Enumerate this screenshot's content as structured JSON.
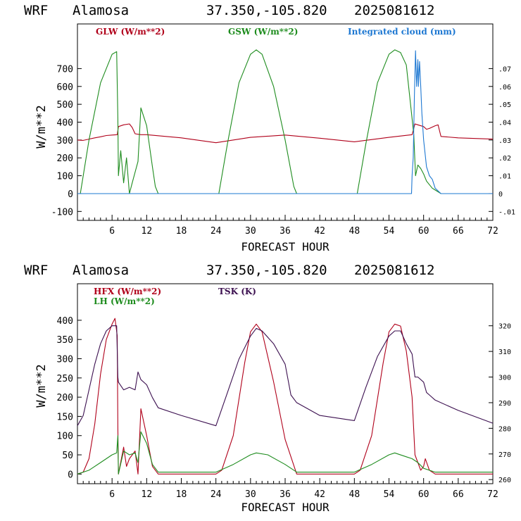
{
  "colors": {
    "red": "#b0001a",
    "green": "#1e8c1e",
    "blue": "#1e78d2",
    "purple": "#3c1050"
  },
  "chart_data": [
    {
      "type": "line",
      "header": {
        "model": "WRF",
        "site": "Alamosa",
        "coords": "37.350,-105.820",
        "run": "2025081612"
      },
      "xlabel": "FORECAST HOUR",
      "ylabel": "W/m**2",
      "xlim": [
        0,
        72
      ],
      "ylim": [
        -150,
        950
      ],
      "x_ticks": [
        6,
        12,
        18,
        24,
        30,
        36,
        42,
        48,
        54,
        60,
        66,
        72
      ],
      "y_ticks": [
        -100,
        0,
        100,
        200,
        300,
        400,
        500,
        600,
        700
      ],
      "y2_lim": [
        -0.015,
        0.095
      ],
      "y2_ticks": [
        -0.01,
        0,
        0.01,
        0.02,
        0.03,
        0.04,
        0.05,
        0.06,
        0.07
      ],
      "y2_tick_labels": [
        "-.01",
        "0",
        ".01",
        ".02",
        ".03",
        ".04",
        ".05",
        ".06",
        ".07"
      ],
      "series": [
        {
          "name": "GLW (W/m**2)",
          "color": "#b0001a",
          "axis": "left",
          "x": [
            0,
            1,
            2,
            3,
            4,
            5,
            6,
            6.9,
            7.1,
            8,
            9,
            9.5,
            10,
            11,
            12,
            18,
            24,
            30,
            36,
            42,
            48,
            54,
            58,
            58.5,
            59,
            60,
            60.5,
            61,
            62,
            62.5,
            63,
            66,
            72
          ],
          "y": [
            300,
            298,
            305,
            312,
            318,
            325,
            328,
            330,
            375,
            385,
            390,
            370,
            335,
            330,
            330,
            312,
            285,
            315,
            328,
            310,
            290,
            315,
            330,
            390,
            385,
            375,
            360,
            365,
            380,
            385,
            320,
            312,
            305
          ]
        },
        {
          "name": "GSW (W/m**2)",
          "color": "#1e8c1e",
          "axis": "left",
          "x": [
            0,
            0.5,
            2,
            4,
            6,
            6.8,
            7,
            7.1,
            7.5,
            8,
            8.5,
            9,
            9.5,
            10,
            10.5,
            11,
            12,
            13,
            13.5,
            14,
            24.5,
            26,
            28,
            30,
            31,
            32,
            34,
            36,
            37.5,
            38,
            48.5,
            50,
            52,
            54,
            55,
            56,
            57,
            58,
            58.3,
            58.6,
            59,
            59.5,
            60,
            60.5,
            61,
            61.5,
            62,
            62.5,
            63,
            72
          ],
          "y": [
            0,
            0,
            300,
            620,
            780,
            795,
            420,
            100,
            240,
            60,
            200,
            0,
            60,
            120,
            180,
            480,
            380,
            150,
            40,
            0,
            0,
            280,
            620,
            780,
            805,
            780,
            600,
            300,
            40,
            0,
            0,
            280,
            620,
            780,
            805,
            790,
            720,
            420,
            330,
            100,
            160,
            140,
            110,
            70,
            50,
            30,
            20,
            10,
            0,
            0
          ]
        },
        {
          "name": "Integrated cloud (mm)",
          "color": "#1e78d2",
          "axis": "right",
          "x": [
            0,
            57.9,
            58,
            58.2,
            58.4,
            58.6,
            58.8,
            59,
            59.1,
            59.3,
            59.5,
            59.7,
            60,
            60.5,
            61,
            61.5,
            62,
            63,
            72
          ],
          "y": [
            0,
            0,
            0.01,
            0.02,
            0.055,
            0.08,
            0.06,
            0.075,
            0.06,
            0.074,
            0.06,
            0.045,
            0.03,
            0.015,
            0.01,
            0.008,
            0.003,
            0,
            0
          ]
        }
      ]
    },
    {
      "type": "line",
      "header": {
        "model": "WRF",
        "site": "Alamosa",
        "coords": "37.350,-105.820",
        "run": "2025081612"
      },
      "xlabel": "FORECAST HOUR",
      "ylabel": "W/m**2",
      "xlim": [
        0,
        72
      ],
      "ylim": [
        -25,
        495
      ],
      "x_ticks": [
        6,
        12,
        18,
        24,
        30,
        36,
        42,
        48,
        54,
        60,
        66,
        72
      ],
      "y_ticks": [
        0,
        50,
        100,
        150,
        200,
        250,
        300,
        350,
        400
      ],
      "y2_lim": [
        258.4,
        336.4
      ],
      "y2_ticks": [
        260,
        270,
        280,
        290,
        300,
        310,
        320
      ],
      "y2_tick_labels": [
        "260",
        "270",
        "280",
        "290",
        "300",
        "310",
        "320"
      ],
      "series": [
        {
          "name": "HFX (W/m**2)",
          "color": "#b0001a",
          "axis": "left",
          "x": [
            0,
            1,
            2,
            3,
            4,
            5,
            6,
            6.5,
            6.9,
            7,
            7.1,
            8,
            8.5,
            9,
            10,
            10.5,
            11,
            12,
            13,
            14,
            24,
            25,
            27,
            29,
            30,
            31,
            32,
            34,
            36,
            38,
            48,
            49,
            51,
            53,
            54,
            55,
            56,
            57,
            58,
            58.5,
            59,
            59.5,
            60,
            60.3,
            61,
            62,
            72
          ],
          "y": [
            0,
            5,
            40,
            130,
            260,
            350,
            390,
            405,
            360,
            120,
            0,
            70,
            20,
            40,
            60,
            0,
            170,
            100,
            20,
            0,
            0,
            10,
            100,
            290,
            370,
            390,
            370,
            240,
            90,
            0,
            0,
            10,
            100,
            290,
            370,
            390,
            385,
            320,
            200,
            50,
            30,
            10,
            20,
            40,
            10,
            0,
            0
          ]
        },
        {
          "name": "LH (W/m**2)",
          "color": "#1e8c1e",
          "axis": "left",
          "x": [
            0,
            2,
            4,
            6,
            6.8,
            7,
            7.1,
            8,
            9,
            10,
            10.5,
            11,
            12,
            13,
            14,
            24,
            27,
            30,
            31,
            33,
            36,
            38,
            48,
            51,
            54,
            55,
            57,
            58,
            59,
            60,
            61,
            62,
            72
          ],
          "y": [
            0,
            10,
            30,
            50,
            55,
            100,
            0,
            60,
            50,
            55,
            30,
            110,
            80,
            25,
            5,
            5,
            25,
            50,
            55,
            50,
            25,
            5,
            5,
            25,
            50,
            55,
            45,
            40,
            30,
            15,
            10,
            5,
            5
          ]
        },
        {
          "name": "TSK (K)",
          "color": "#3c1050",
          "axis": "right",
          "x": [
            0,
            1,
            2,
            3,
            4,
            5,
            6,
            6.8,
            7,
            7.1,
            8,
            9,
            10,
            10.5,
            11,
            12,
            13,
            14,
            18,
            24,
            26,
            28,
            30,
            31,
            32,
            34,
            36,
            37,
            38,
            42,
            48,
            50,
            52,
            54,
            55,
            56,
            57,
            58,
            58.5,
            59,
            60,
            60.5,
            61,
            62,
            66,
            72
          ],
          "y": [
            281,
            285,
            295,
            305,
            313,
            318,
            320,
            320,
            300,
            298,
            295,
            296,
            295,
            302,
            299,
            297,
            292,
            288,
            285,
            281,
            294,
            307,
            316,
            319,
            318,
            313,
            305,
            293,
            290,
            285,
            283,
            296,
            308,
            316,
            318,
            318,
            313,
            309,
            300,
            300,
            298,
            294,
            293,
            291,
            287,
            282
          ]
        }
      ]
    }
  ]
}
